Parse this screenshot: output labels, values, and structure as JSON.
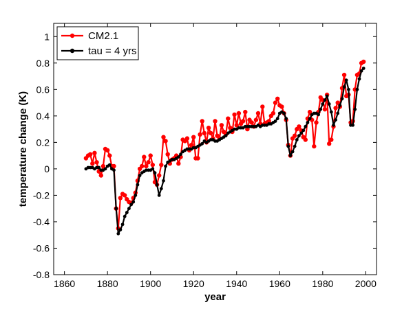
{
  "chart_data": {
    "type": "line",
    "xlabel": "year",
    "ylabel": "temperature change (K)",
    "xlim": [
      1855,
      2005
    ],
    "ylim": [
      -0.8,
      1.1
    ],
    "xticks": [
      1860,
      1880,
      1900,
      1920,
      1940,
      1960,
      1980,
      2000
    ],
    "yticks": [
      -0.8,
      -0.6,
      -0.4,
      -0.2,
      0,
      0.2,
      0.4,
      0.6,
      0.8,
      1
    ],
    "ytick_labels": [
      "-0.8",
      "-0.6",
      "-0.4",
      "-0.2",
      "0",
      "0.2",
      "0.4",
      "0.6",
      "0.8",
      "1"
    ],
    "grid": false,
    "legend_position": "top-left",
    "series": [
      {
        "name": "CM2.1",
        "color": "#ff0000",
        "x": [
          1870,
          1871,
          1872,
          1873,
          1874,
          1875,
          1876,
          1877,
          1878,
          1879,
          1880,
          1881,
          1882,
          1883,
          1884,
          1885,
          1886,
          1887,
          1888,
          1889,
          1890,
          1891,
          1892,
          1893,
          1894,
          1895,
          1896,
          1897,
          1898,
          1899,
          1900,
          1901,
          1902,
          1903,
          1904,
          1905,
          1906,
          1907,
          1908,
          1909,
          1910,
          1911,
          1912,
          1913,
          1914,
          1915,
          1916,
          1917,
          1918,
          1919,
          1920,
          1921,
          1922,
          1923,
          1924,
          1925,
          1926,
          1927,
          1928,
          1929,
          1930,
          1931,
          1932,
          1933,
          1934,
          1935,
          1936,
          1937,
          1938,
          1939,
          1940,
          1941,
          1942,
          1943,
          1944,
          1945,
          1946,
          1947,
          1948,
          1949,
          1950,
          1951,
          1952,
          1953,
          1954,
          1955,
          1956,
          1957,
          1958,
          1959,
          1960,
          1961,
          1962,
          1963,
          1964,
          1965,
          1966,
          1967,
          1968,
          1969,
          1970,
          1971,
          1972,
          1973,
          1974,
          1975,
          1976,
          1977,
          1978,
          1979,
          1980,
          1981,
          1982,
          1983,
          1984,
          1985,
          1986,
          1987,
          1988,
          1989,
          1990,
          1991,
          1992,
          1993,
          1994,
          1995,
          1996,
          1997,
          1998,
          1999
        ],
        "y": [
          0.08,
          0.1,
          0.11,
          0.04,
          0.12,
          0.05,
          -0.02,
          -0.05,
          0.02,
          0.15,
          0.14,
          0.1,
          0.02,
          0.02,
          -0.3,
          -0.45,
          -0.22,
          -0.19,
          -0.2,
          -0.23,
          -0.25,
          -0.26,
          -0.22,
          -0.18,
          -0.09,
          0.0,
          0.02,
          0.09,
          0.02,
          0.05,
          0.1,
          0.03,
          -0.1,
          -0.12,
          -0.05,
          0.03,
          0.24,
          0.21,
          0.11,
          0.04,
          0.07,
          0.08,
          0.1,
          0.04,
          0.09,
          0.22,
          0.21,
          0.23,
          0.14,
          0.18,
          0.24,
          0.08,
          0.08,
          0.26,
          0.36,
          0.27,
          0.2,
          0.31,
          0.27,
          0.23,
          0.36,
          0.25,
          0.23,
          0.33,
          0.28,
          0.26,
          0.38,
          0.31,
          0.28,
          0.41,
          0.33,
          0.42,
          0.34,
          0.36,
          0.43,
          0.3,
          0.37,
          0.35,
          0.32,
          0.37,
          0.42,
          0.34,
          0.47,
          0.34,
          0.35,
          0.36,
          0.4,
          0.42,
          0.5,
          0.53,
          0.48,
          0.47,
          0.42,
          0.37,
          0.18,
          0.1,
          0.23,
          0.25,
          0.3,
          0.32,
          0.29,
          0.24,
          0.22,
          0.38,
          0.43,
          0.37,
          0.17,
          0.35,
          0.43,
          0.54,
          0.52,
          0.45,
          0.56,
          0.19,
          0.22,
          0.32,
          0.46,
          0.5,
          0.47,
          0.61,
          0.71,
          0.55,
          0.56,
          0.35,
          0.36,
          0.6,
          0.71,
          0.72,
          0.8,
          0.81
        ]
      },
      {
        "name": "tau = 4 yrs",
        "color": "#000000",
        "x": [
          1870,
          1871,
          1872,
          1873,
          1874,
          1875,
          1876,
          1877,
          1878,
          1879,
          1880,
          1881,
          1882,
          1883,
          1884,
          1885,
          1886,
          1887,
          1888,
          1889,
          1890,
          1891,
          1892,
          1893,
          1894,
          1895,
          1896,
          1897,
          1898,
          1899,
          1900,
          1901,
          1902,
          1903,
          1904,
          1905,
          1906,
          1907,
          1908,
          1909,
          1910,
          1911,
          1912,
          1913,
          1914,
          1915,
          1916,
          1917,
          1918,
          1919,
          1920,
          1921,
          1922,
          1923,
          1924,
          1925,
          1926,
          1927,
          1928,
          1929,
          1930,
          1931,
          1932,
          1933,
          1934,
          1935,
          1936,
          1937,
          1938,
          1939,
          1940,
          1941,
          1942,
          1943,
          1944,
          1945,
          1946,
          1947,
          1948,
          1949,
          1950,
          1951,
          1952,
          1953,
          1954,
          1955,
          1956,
          1957,
          1958,
          1959,
          1960,
          1961,
          1962,
          1963,
          1964,
          1965,
          1966,
          1967,
          1968,
          1969,
          1970,
          1971,
          1972,
          1973,
          1974,
          1975,
          1976,
          1977,
          1978,
          1979,
          1980,
          1981,
          1982,
          1983,
          1984,
          1985,
          1986,
          1987,
          1988,
          1989,
          1990,
          1991,
          1992,
          1993,
          1994,
          1995,
          1996,
          1997,
          1998,
          1999
        ],
        "y": [
          0.0,
          0.01,
          0.01,
          0.01,
          0.0,
          0.01,
          0.01,
          -0.01,
          -0.01,
          0.0,
          0.02,
          0.03,
          0.0,
          -0.01,
          -0.3,
          -0.49,
          -0.46,
          -0.42,
          -0.36,
          -0.33,
          -0.3,
          -0.27,
          -0.25,
          -0.2,
          -0.12,
          -0.05,
          -0.03,
          -0.02,
          -0.01,
          -0.01,
          -0.01,
          0.0,
          -0.03,
          -0.12,
          -0.2,
          -0.15,
          -0.09,
          0.02,
          0.05,
          0.06,
          0.07,
          0.07,
          0.08,
          0.09,
          0.11,
          0.13,
          0.14,
          0.15,
          0.15,
          0.15,
          0.16,
          0.16,
          0.17,
          0.18,
          0.19,
          0.21,
          0.2,
          0.21,
          0.22,
          0.22,
          0.21,
          0.21,
          0.22,
          0.23,
          0.24,
          0.25,
          0.27,
          0.28,
          0.29,
          0.3,
          0.3,
          0.31,
          0.31,
          0.31,
          0.32,
          0.32,
          0.32,
          0.32,
          0.32,
          0.32,
          0.33,
          0.32,
          0.33,
          0.33,
          0.33,
          0.34,
          0.34,
          0.35,
          0.36,
          0.38,
          0.42,
          0.43,
          0.42,
          0.38,
          0.17,
          0.1,
          0.13,
          0.17,
          0.22,
          0.25,
          0.27,
          0.29,
          0.32,
          0.35,
          0.38,
          0.41,
          0.42,
          0.42,
          0.41,
          0.45,
          0.49,
          0.52,
          0.55,
          0.49,
          0.43,
          0.33,
          0.37,
          0.42,
          0.48,
          0.53,
          0.62,
          0.67,
          0.6,
          0.33,
          0.33,
          0.45,
          0.6,
          0.68,
          0.74,
          0.76
        ]
      }
    ]
  }
}
